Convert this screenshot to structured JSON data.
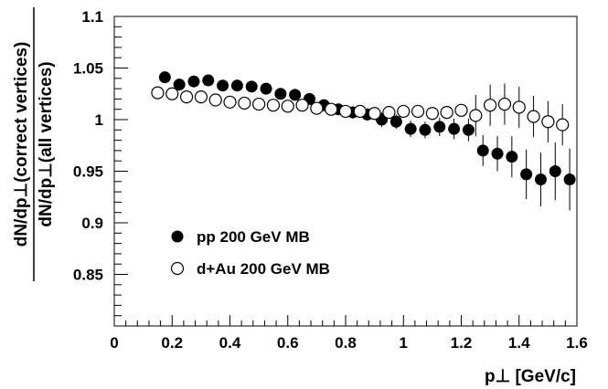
{
  "chart_data": {
    "type": "scatter",
    "title": "",
    "xlabel": "p⊥ [GeV/c]",
    "ylabel_numerator": "dN/dp⊥(correct vertices)",
    "ylabel_denominator": "dN/dp⊥(all vertices)",
    "xlim": [
      0,
      1.6
    ],
    "ylim": [
      0.8,
      1.1
    ],
    "x_ticks": [
      0,
      0.2,
      0.4,
      0.6,
      0.8,
      1,
      1.2,
      1.4,
      1.6
    ],
    "x_tick_labels": [
      "0",
      "0.2",
      "0.4",
      "0.6",
      "0.8",
      "1",
      "1.2",
      "1.4",
      "1.6"
    ],
    "y_ticks": [
      0.85,
      0.9,
      0.95,
      1,
      1.05,
      1.1
    ],
    "y_tick_labels": [
      "0.85",
      "0.9",
      "0.95",
      "1",
      "1.05",
      "1.1"
    ],
    "grid": false,
    "legend_position": "center-left",
    "series": [
      {
        "name": "pp 200 GeV MB",
        "marker": "filled-circle",
        "color": "#000000",
        "x": [
          0.175,
          0.225,
          0.275,
          0.325,
          0.375,
          0.425,
          0.475,
          0.525,
          0.575,
          0.625,
          0.675,
          0.725,
          0.775,
          0.825,
          0.875,
          0.925,
          0.975,
          1.025,
          1.075,
          1.125,
          1.175,
          1.225,
          1.275,
          1.325,
          1.375,
          1.425,
          1.475,
          1.525,
          1.575
        ],
        "y": [
          1.041,
          1.034,
          1.037,
          1.038,
          1.033,
          1.033,
          1.032,
          1.03,
          1.025,
          1.024,
          1.02,
          1.014,
          1.01,
          1.007,
          1.005,
          1.0,
          0.998,
          0.991,
          0.99,
          0.993,
          0.991,
          0.99,
          0.97,
          0.967,
          0.964,
          0.947,
          0.942,
          0.95,
          0.942
        ],
        "err": [
          0.002,
          0.002,
          0.002,
          0.002,
          0.002,
          0.003,
          0.003,
          0.003,
          0.003,
          0.004,
          0.004,
          0.005,
          0.005,
          0.006,
          0.006,
          0.007,
          0.007,
          0.008,
          0.008,
          0.009,
          0.01,
          0.011,
          0.015,
          0.017,
          0.02,
          0.024,
          0.026,
          0.028,
          0.03
        ]
      },
      {
        "name": "d+Au 200 GeV MB",
        "marker": "open-circle",
        "color": "#000000",
        "x": [
          0.15,
          0.2,
          0.25,
          0.3,
          0.35,
          0.4,
          0.45,
          0.5,
          0.55,
          0.6,
          0.65,
          0.7,
          0.75,
          0.8,
          0.85,
          0.9,
          0.95,
          1.0,
          1.05,
          1.1,
          1.15,
          1.2,
          1.25,
          1.3,
          1.35,
          1.4,
          1.45,
          1.5,
          1.55
        ],
        "y": [
          1.026,
          1.025,
          1.022,
          1.022,
          1.019,
          1.017,
          1.016,
          1.015,
          1.014,
          1.013,
          1.014,
          1.011,
          1.01,
          1.008,
          1.008,
          1.006,
          1.007,
          1.008,
          1.008,
          1.006,
          1.007,
          1.009,
          1.004,
          1.014,
          1.015,
          1.012,
          1.003,
          0.998,
          0.995
        ]
      }
    ]
  }
}
